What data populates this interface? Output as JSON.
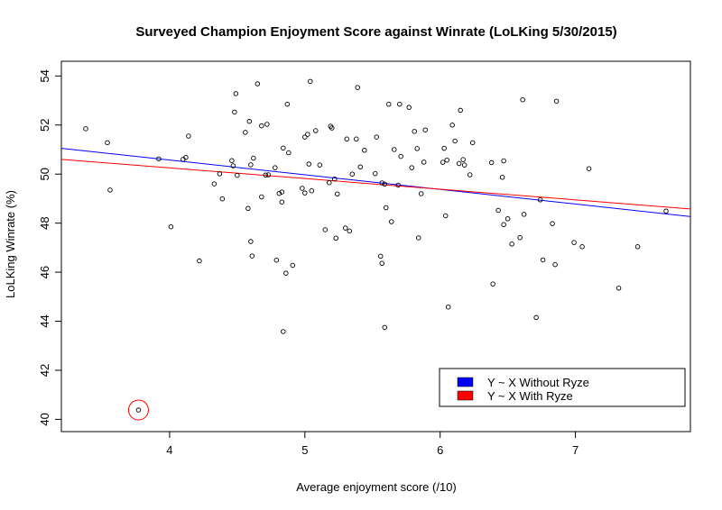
{
  "chart_data": {
    "type": "scatter",
    "title": "Surveyed Champion Enjoyment Score against Winrate (LoLKing 5/30/2015)",
    "xlabel": "Average enjoyment score (/10)",
    "ylabel": "LoLKing Winrate (%)",
    "xlim": [
      3.2,
      7.85
    ],
    "ylim": [
      39.5,
      54.6
    ],
    "x_ticks": [
      4,
      5,
      6,
      7
    ],
    "y_ticks": [
      40,
      42,
      44,
      46,
      48,
      50,
      52,
      54
    ],
    "grid": false,
    "legend_position": "bottom-right",
    "points": [
      [
        3.38,
        51.85
      ],
      [
        3.54,
        51.28
      ],
      [
        3.56,
        49.35
      ],
      [
        3.77,
        40.38
      ],
      [
        3.92,
        50.62
      ],
      [
        4.01,
        47.85
      ],
      [
        4.1,
        50.6
      ],
      [
        4.12,
        50.68
      ],
      [
        4.14,
        51.55
      ],
      [
        4.22,
        46.46
      ],
      [
        4.33,
        49.6
      ],
      [
        4.37,
        50.01
      ],
      [
        4.39,
        48.99
      ],
      [
        4.46,
        50.55
      ],
      [
        4.47,
        50.34
      ],
      [
        4.48,
        52.53
      ],
      [
        4.49,
        53.28
      ],
      [
        4.5,
        49.95
      ],
      [
        4.56,
        51.7
      ],
      [
        4.58,
        48.6
      ],
      [
        4.59,
        52.15
      ],
      [
        4.6,
        47.25
      ],
      [
        4.6,
        50.38
      ],
      [
        4.61,
        46.66
      ],
      [
        4.62,
        50.65
      ],
      [
        4.65,
        53.68
      ],
      [
        4.68,
        51.97
      ],
      [
        4.68,
        49.07
      ],
      [
        4.71,
        49.96
      ],
      [
        4.72,
        52.03
      ],
      [
        4.73,
        49.97
      ],
      [
        4.78,
        50.26
      ],
      [
        4.79,
        46.49
      ],
      [
        4.81,
        49.21
      ],
      [
        4.83,
        48.86
      ],
      [
        4.83,
        49.27
      ],
      [
        4.84,
        43.58
      ],
      [
        4.84,
        51.06
      ],
      [
        4.86,
        45.96
      ],
      [
        4.87,
        52.85
      ],
      [
        4.88,
        50.87
      ],
      [
        4.91,
        46.28
      ],
      [
        4.98,
        49.42
      ],
      [
        5.0,
        49.23
      ],
      [
        5.0,
        51.51
      ],
      [
        5.02,
        51.62
      ],
      [
        5.03,
        50.41
      ],
      [
        5.04,
        53.78
      ],
      [
        5.05,
        49.32
      ],
      [
        5.08,
        51.77
      ],
      [
        5.11,
        50.37
      ],
      [
        5.15,
        47.73
      ],
      [
        5.18,
        49.65
      ],
      [
        5.19,
        51.95
      ],
      [
        5.2,
        51.88
      ],
      [
        5.22,
        49.8
      ],
      [
        5.23,
        47.39
      ],
      [
        5.24,
        49.19
      ],
      [
        5.3,
        47.8
      ],
      [
        5.31,
        51.43
      ],
      [
        5.33,
        47.68
      ],
      [
        5.35,
        50.0
      ],
      [
        5.38,
        51.43
      ],
      [
        5.39,
        53.53
      ],
      [
        5.41,
        50.29
      ],
      [
        5.44,
        50.97
      ],
      [
        5.52,
        50.02
      ],
      [
        5.53,
        51.51
      ],
      [
        5.56,
        46.65
      ],
      [
        5.57,
        46.36
      ],
      [
        5.57,
        49.64
      ],
      [
        5.59,
        43.75
      ],
      [
        5.59,
        49.59
      ],
      [
        5.6,
        48.63
      ],
      [
        5.62,
        52.85
      ],
      [
        5.64,
        48.06
      ],
      [
        5.66,
        51.0
      ],
      [
        5.69,
        49.55
      ],
      [
        5.7,
        52.85
      ],
      [
        5.71,
        50.72
      ],
      [
        5.77,
        52.72
      ],
      [
        5.79,
        50.26
      ],
      [
        5.81,
        51.74
      ],
      [
        5.83,
        51.04
      ],
      [
        5.84,
        47.4
      ],
      [
        5.86,
        49.2
      ],
      [
        5.88,
        50.49
      ],
      [
        5.89,
        51.8
      ],
      [
        6.02,
        50.48
      ],
      [
        6.03,
        51.05
      ],
      [
        6.04,
        48.3
      ],
      [
        6.05,
        50.57
      ],
      [
        6.06,
        44.58
      ],
      [
        6.09,
        52.0
      ],
      [
        6.11,
        51.35
      ],
      [
        6.14,
        50.43
      ],
      [
        6.15,
        52.6
      ],
      [
        6.17,
        50.59
      ],
      [
        6.18,
        50.37
      ],
      [
        6.22,
        49.97
      ],
      [
        6.24,
        51.28
      ],
      [
        6.38,
        50.47
      ],
      [
        6.39,
        45.52
      ],
      [
        6.43,
        48.52
      ],
      [
        6.46,
        49.87
      ],
      [
        6.47,
        50.54
      ],
      [
        6.47,
        47.94
      ],
      [
        6.5,
        48.18
      ],
      [
        6.53,
        47.15
      ],
      [
        6.59,
        47.41
      ],
      [
        6.61,
        53.03
      ],
      [
        6.62,
        48.36
      ],
      [
        6.71,
        44.15
      ],
      [
        6.74,
        48.95
      ],
      [
        6.76,
        46.5
      ],
      [
        6.83,
        47.98
      ],
      [
        6.85,
        46.31
      ],
      [
        6.86,
        52.97
      ],
      [
        6.99,
        47.21
      ],
      [
        7.05,
        47.04
      ],
      [
        7.1,
        50.22
      ],
      [
        7.32,
        45.35
      ],
      [
        7.46,
        47.04
      ],
      [
        7.67,
        48.49
      ]
    ],
    "highlighted_point": [
      3.77,
      40.38
    ],
    "series": [
      {
        "name": "Y ~ X Without Ryze",
        "color": "#0000ff",
        "line": [
          [
            3.2,
            51.05
          ],
          [
            7.85,
            48.27
          ]
        ]
      },
      {
        "name": "Y ~ X With Ryze",
        "color": "#ff0000",
        "line": [
          [
            3.2,
            50.6
          ],
          [
            7.85,
            48.58
          ]
        ]
      }
    ],
    "colors": {
      "points": "#000000",
      "highlight_circle": "#ff0000",
      "axes": "#000000"
    }
  }
}
